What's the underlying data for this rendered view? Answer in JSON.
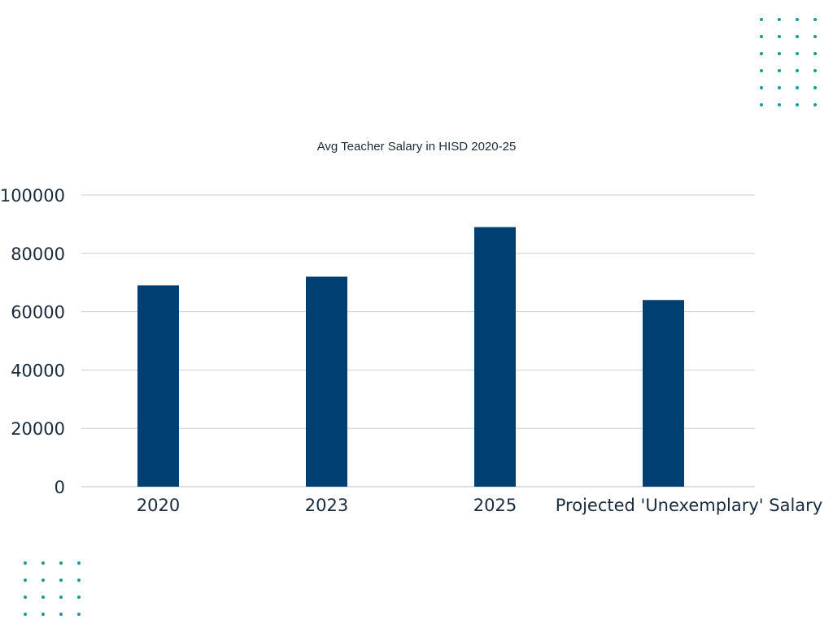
{
  "chart_data": {
    "type": "bar",
    "title": "Avg  Teacher Salary in HISD 2020-25",
    "categories": [
      "2020",
      "2023",
      "2025",
      "Projected 'Unexemplary' Salary"
    ],
    "values": [
      69000,
      72000,
      89000,
      64000
    ],
    "yticks": [
      "0",
      "20000",
      "40000",
      "60000",
      "80000",
      "100000"
    ],
    "ylim": [
      0,
      100000
    ],
    "xlabel": "",
    "ylabel": "",
    "grid": true,
    "legend": "none",
    "bar_color": "#003f72",
    "text_color": "#1a2b3c",
    "grid_color": "#cccccc"
  },
  "decor": {
    "dot_color": "#1a9a96",
    "dot_icon": "dot-grid-icon"
  }
}
